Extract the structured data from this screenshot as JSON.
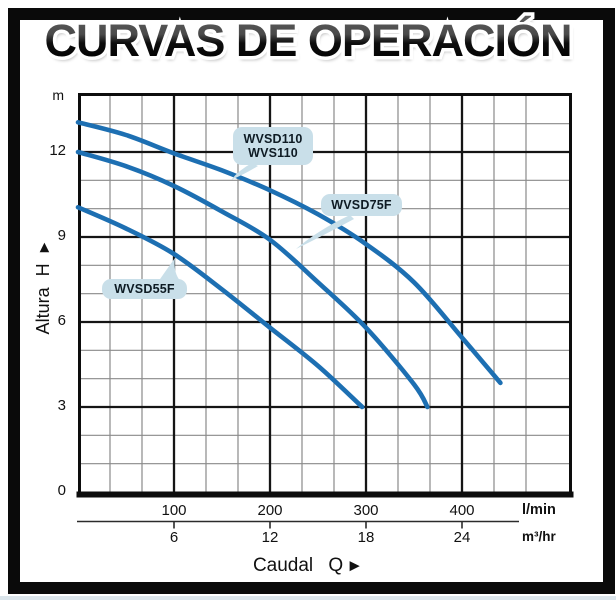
{
  "title": "CURVAS DE OPERACIÓN",
  "colors": {
    "curve": "#1d6fb2",
    "bubble": "#c9dfe9",
    "bubble_text": "#0e1b24",
    "grid_minor": "#8a8a8a",
    "grid_major": "#151515",
    "plot_border": "#0d0d0d",
    "frame": "#0a0a0a",
    "axis_text": "#111111"
  },
  "y_axis": {
    "label": "Altura H",
    "arrow": "►",
    "unit": "m"
  },
  "x_axis": {
    "label": "Caudal Q",
    "arrow": "►",
    "primary_unit": "l/min",
    "secondary_unit": "m³/hr"
  },
  "callouts": [
    {
      "lines": [
        "WVSD110",
        "WVS110"
      ]
    },
    {
      "lines": [
        "WVSD75F"
      ]
    },
    {
      "lines": [
        "WVSD55F"
      ]
    }
  ],
  "chart_data": {
    "type": "line",
    "title": "CURVAS DE OPERACIÓN",
    "xlabel": "Caudal Q",
    "ylabel": "Altura H",
    "x_units": [
      "l/min",
      "m³/hr"
    ],
    "y_unit": "m",
    "x_ticks_lmin": [
      100,
      200,
      300,
      400
    ],
    "x_ticks_m3hr": [
      6,
      12,
      18,
      24
    ],
    "y_ticks_m": [
      12,
      9,
      6,
      3,
      0
    ],
    "xlim_lmin": [
      0,
      515
    ],
    "ylim_m": [
      0,
      14
    ],
    "grid": "major+minor",
    "unit_relation": "100 l/min = 6 m³/hr",
    "legend_position": "callout-bubbles-on-curves",
    "series": [
      {
        "name": "WVSD110 / WVS110",
        "points_lmin_m": [
          [
            0,
            13.05
          ],
          [
            50,
            12.6
          ],
          [
            100,
            11.95
          ],
          [
            150,
            11.35
          ],
          [
            200,
            10.65
          ],
          [
            250,
            9.8
          ],
          [
            300,
            8.75
          ],
          [
            350,
            7.4
          ],
          [
            400,
            5.45
          ],
          [
            440,
            3.85
          ]
        ]
      },
      {
        "name": "WVSD75F",
        "points_lmin_m": [
          [
            0,
            12.0
          ],
          [
            50,
            11.5
          ],
          [
            100,
            10.8
          ],
          [
            150,
            9.9
          ],
          [
            200,
            8.9
          ],
          [
            250,
            7.4
          ],
          [
            300,
            5.8
          ],
          [
            350,
            3.8
          ],
          [
            364,
            3.0
          ]
        ]
      },
      {
        "name": "WVSD55F",
        "points_lmin_m": [
          [
            0,
            10.05
          ],
          [
            50,
            9.3
          ],
          [
            100,
            8.4
          ],
          [
            150,
            7.15
          ],
          [
            200,
            5.8
          ],
          [
            250,
            4.45
          ],
          [
            296,
            3.0
          ]
        ]
      }
    ]
  }
}
